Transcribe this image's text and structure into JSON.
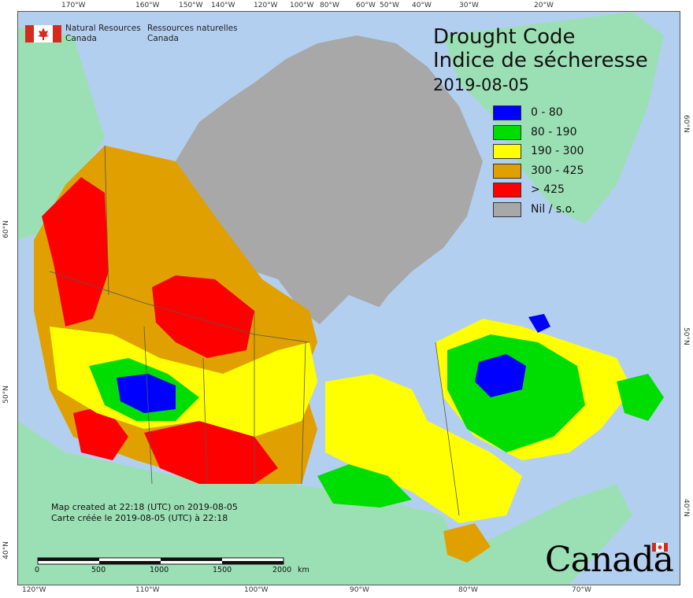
{
  "agency": {
    "name_en_line1": "Natural Resources",
    "name_en_line2": "Canada",
    "name_fr_line1": "Ressources naturelles",
    "name_fr_line2": "Canada"
  },
  "title": {
    "en": "Drought Code",
    "fr": "Indice de sécheresse",
    "date": "2019-08-05"
  },
  "legend": [
    {
      "label": "0 - 80",
      "color": "#0000ff"
    },
    {
      "label": "80 - 190",
      "color": "#00dd00"
    },
    {
      "label": "190 - 300",
      "color": "#ffff00"
    },
    {
      "label": "300 - 425",
      "color": "#e0a000"
    },
    {
      "label": "> 425",
      "color": "#ff0000"
    },
    {
      "label": "Nil / s.o.",
      "color": "#a8a8a8"
    }
  ],
  "credits": {
    "line_en": "Map created at 22:18 (UTC) on 2019-08-05",
    "line_fr": "Carte créée le 2019-08-05 (UTC) à 22:18"
  },
  "scale": {
    "ticks": [
      "0",
      "500",
      "1000",
      "1500",
      "2000"
    ],
    "unit": "km"
  },
  "graticule": {
    "top": [
      "170°W",
      "160°W",
      "150°W",
      "140°W",
      "120°W",
      "100°W",
      "80°W",
      "60°W",
      "50°W",
      "40°W",
      "30°W",
      "20°W"
    ],
    "bottom": [
      "120°W",
      "110°W",
      "100°W",
      "90°W",
      "80°W",
      "70°W"
    ],
    "left": [
      "60°N",
      "50°N",
      "40°N"
    ],
    "right": [
      "60°N",
      "50°N",
      "40°N"
    ]
  },
  "wordmark": "Canada",
  "colors": {
    "ocean": "#b3cff0",
    "foreign_land": "#9be0b4",
    "no_data": "#a8a8a8",
    "border": "#555555"
  }
}
